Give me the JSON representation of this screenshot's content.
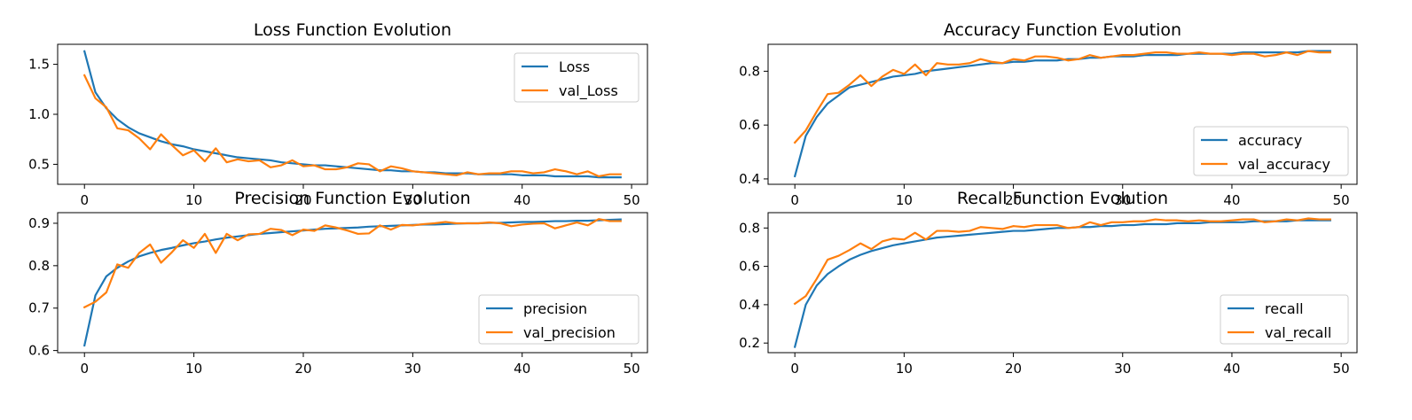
{
  "chart_data": [
    {
      "type": "line",
      "title": "Loss Function Evolution",
      "xlim": [
        -2.45,
        51.45
      ],
      "ylim": [
        0.3,
        1.7
      ],
      "xticks": [
        0,
        10,
        20,
        30,
        40,
        50
      ],
      "yticks": [
        0.5,
        1.0,
        1.5
      ],
      "ytick_labels": [
        "0.5",
        "1.0",
        "1.5"
      ],
      "legend_position": "upper right",
      "series": [
        {
          "name": "Loss",
          "color": "#1f77b4",
          "values": [
            1.63,
            1.22,
            1.06,
            0.95,
            0.87,
            0.81,
            0.77,
            0.73,
            0.7,
            0.68,
            0.65,
            0.63,
            0.61,
            0.59,
            0.57,
            0.56,
            0.55,
            0.54,
            0.52,
            0.51,
            0.5,
            0.49,
            0.49,
            0.48,
            0.47,
            0.46,
            0.45,
            0.44,
            0.44,
            0.43,
            0.43,
            0.42,
            0.42,
            0.41,
            0.41,
            0.41,
            0.4,
            0.4,
            0.4,
            0.4,
            0.39,
            0.39,
            0.39,
            0.38,
            0.38,
            0.38,
            0.38,
            0.37,
            0.37,
            0.37
          ]
        },
        {
          "name": "val_Loss",
          "color": "#ff7f0e",
          "values": [
            1.39,
            1.16,
            1.07,
            0.86,
            0.84,
            0.76,
            0.65,
            0.8,
            0.69,
            0.59,
            0.64,
            0.53,
            0.66,
            0.52,
            0.55,
            0.53,
            0.54,
            0.47,
            0.49,
            0.54,
            0.48,
            0.49,
            0.45,
            0.45,
            0.47,
            0.51,
            0.5,
            0.43,
            0.48,
            0.46,
            0.43,
            0.42,
            0.41,
            0.4,
            0.39,
            0.42,
            0.4,
            0.41,
            0.41,
            0.43,
            0.43,
            0.41,
            0.42,
            0.45,
            0.43,
            0.4,
            0.43,
            0.38,
            0.4,
            0.4
          ]
        }
      ]
    },
    {
      "type": "line",
      "title": "Accuracy Function Evolution",
      "xlim": [
        -2.45,
        51.45
      ],
      "ylim": [
        0.38,
        0.9
      ],
      "xticks": [
        0,
        10,
        20,
        30,
        40,
        50
      ],
      "yticks": [
        0.4,
        0.6,
        0.8
      ],
      "ytick_labels": [
        "0.4",
        "0.6",
        "0.8"
      ],
      "legend_position": "lower right",
      "series": [
        {
          "name": "accuracy",
          "color": "#1f77b4",
          "values": [
            0.41,
            0.56,
            0.63,
            0.68,
            0.71,
            0.74,
            0.75,
            0.76,
            0.77,
            0.78,
            0.785,
            0.79,
            0.8,
            0.805,
            0.81,
            0.815,
            0.82,
            0.825,
            0.83,
            0.83,
            0.835,
            0.835,
            0.84,
            0.84,
            0.84,
            0.845,
            0.845,
            0.85,
            0.85,
            0.855,
            0.855,
            0.855,
            0.86,
            0.86,
            0.86,
            0.86,
            0.865,
            0.865,
            0.865,
            0.865,
            0.865,
            0.87,
            0.87,
            0.87,
            0.87,
            0.87,
            0.87,
            0.875,
            0.875,
            0.875
          ]
        },
        {
          "name": "val_accuracy",
          "color": "#ff7f0e",
          "values": [
            0.535,
            0.58,
            0.65,
            0.715,
            0.72,
            0.75,
            0.785,
            0.745,
            0.78,
            0.805,
            0.79,
            0.825,
            0.785,
            0.83,
            0.825,
            0.825,
            0.83,
            0.845,
            0.835,
            0.83,
            0.845,
            0.84,
            0.855,
            0.855,
            0.85,
            0.84,
            0.845,
            0.86,
            0.85,
            0.855,
            0.86,
            0.86,
            0.865,
            0.87,
            0.87,
            0.865,
            0.865,
            0.87,
            0.865,
            0.865,
            0.86,
            0.865,
            0.865,
            0.855,
            0.86,
            0.87,
            0.86,
            0.875,
            0.87,
            0.87
          ]
        }
      ]
    },
    {
      "type": "line",
      "title": "Precision Function Evolution",
      "xlim": [
        -2.45,
        51.45
      ],
      "ylim": [
        0.595,
        0.925
      ],
      "xticks": [
        0,
        10,
        20,
        30,
        40,
        50
      ],
      "yticks": [
        0.6,
        0.7,
        0.8,
        0.9
      ],
      "ytick_labels": [
        "0.6",
        "0.7",
        "0.8",
        "0.9"
      ],
      "legend_position": "lower right",
      "series": [
        {
          "name": "precision",
          "color": "#1f77b4",
          "values": [
            0.612,
            0.73,
            0.775,
            0.795,
            0.81,
            0.822,
            0.83,
            0.837,
            0.842,
            0.848,
            0.853,
            0.857,
            0.862,
            0.866,
            0.869,
            0.872,
            0.875,
            0.877,
            0.879,
            0.881,
            0.883,
            0.885,
            0.887,
            0.888,
            0.889,
            0.89,
            0.892,
            0.893,
            0.894,
            0.895,
            0.896,
            0.897,
            0.897,
            0.898,
            0.899,
            0.9,
            0.9,
            0.901,
            0.901,
            0.902,
            0.903,
            0.903,
            0.904,
            0.905,
            0.905,
            0.906,
            0.906,
            0.907,
            0.908,
            0.909
          ]
        },
        {
          "name": "val_precision",
          "color": "#ff7f0e",
          "values": [
            0.702,
            0.715,
            0.737,
            0.803,
            0.795,
            0.83,
            0.85,
            0.807,
            0.832,
            0.86,
            0.842,
            0.875,
            0.83,
            0.875,
            0.86,
            0.874,
            0.875,
            0.887,
            0.884,
            0.872,
            0.885,
            0.882,
            0.895,
            0.89,
            0.883,
            0.875,
            0.876,
            0.895,
            0.885,
            0.896,
            0.895,
            0.898,
            0.9,
            0.903,
            0.9,
            0.9,
            0.9,
            0.902,
            0.9,
            0.893,
            0.897,
            0.899,
            0.9,
            0.888,
            0.895,
            0.902,
            0.895,
            0.91,
            0.905,
            0.905
          ]
        }
      ]
    },
    {
      "type": "line",
      "title": "Recall Function Evolution",
      "xlim": [
        -2.45,
        51.45
      ],
      "ylim": [
        0.15,
        0.88
      ],
      "xticks": [
        0,
        10,
        20,
        30,
        40,
        50
      ],
      "yticks": [
        0.2,
        0.4,
        0.6,
        0.8
      ],
      "ytick_labels": [
        "0.2",
        "0.4",
        "0.6",
        "0.8"
      ],
      "legend_position": "lower right",
      "series": [
        {
          "name": "recall",
          "color": "#1f77b4",
          "values": [
            0.18,
            0.4,
            0.5,
            0.56,
            0.6,
            0.635,
            0.66,
            0.68,
            0.695,
            0.71,
            0.72,
            0.73,
            0.74,
            0.75,
            0.755,
            0.76,
            0.765,
            0.77,
            0.775,
            0.78,
            0.785,
            0.785,
            0.79,
            0.795,
            0.8,
            0.8,
            0.805,
            0.805,
            0.81,
            0.81,
            0.815,
            0.815,
            0.82,
            0.82,
            0.82,
            0.825,
            0.825,
            0.825,
            0.83,
            0.83,
            0.83,
            0.83,
            0.835,
            0.835,
            0.835,
            0.835,
            0.84,
            0.84,
            0.84,
            0.84
          ]
        },
        {
          "name": "val_recall",
          "color": "#ff7f0e",
          "values": [
            0.405,
            0.445,
            0.535,
            0.635,
            0.655,
            0.685,
            0.72,
            0.69,
            0.73,
            0.745,
            0.74,
            0.775,
            0.74,
            0.785,
            0.785,
            0.78,
            0.785,
            0.805,
            0.8,
            0.795,
            0.81,
            0.805,
            0.815,
            0.815,
            0.815,
            0.8,
            0.805,
            0.83,
            0.815,
            0.83,
            0.83,
            0.835,
            0.835,
            0.845,
            0.84,
            0.84,
            0.835,
            0.84,
            0.835,
            0.835,
            0.84,
            0.845,
            0.845,
            0.83,
            0.835,
            0.845,
            0.84,
            0.85,
            0.845,
            0.845
          ]
        }
      ]
    }
  ]
}
